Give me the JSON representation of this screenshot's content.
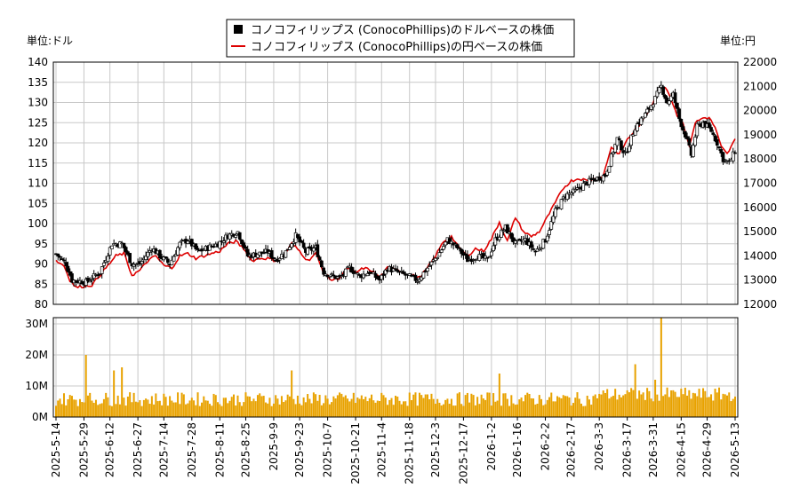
{
  "chart_data": {
    "type": "candlestick+line+volume-bar",
    "legend": {
      "placement": "top-center",
      "entries": [
        "コノコフィリップス (ConocoPhillips)のドルベースの株価",
        "コノコフィリップス (ConocoPhillips)の円ベースの株価"
      ]
    },
    "left_axis_unit": "単位:ドル",
    "right_axis_unit": "単位:円",
    "price_axis": {
      "ylim": [
        80,
        140
      ],
      "ticks": [
        "80",
        "85",
        "90",
        "95",
        "100",
        "105",
        "110",
        "115",
        "120",
        "125",
        "130",
        "135",
        "140"
      ]
    },
    "yen_axis": {
      "ylim": [
        12000,
        22000
      ],
      "ticks": [
        "12000",
        "13000",
        "14000",
        "15000",
        "16000",
        "17000",
        "18000",
        "19000",
        "20000",
        "21000",
        "22000"
      ]
    },
    "volume_axis": {
      "ylim": [
        0,
        32000000
      ],
      "ticks": [
        "0M",
        "10M",
        "20M",
        "30M"
      ]
    },
    "x_tick_labels": [
      "2025-5-14",
      "2025-5-29",
      "2025-6-12",
      "2025-6-27",
      "2025-7-14",
      "2025-7-28",
      "2025-8-11",
      "2025-8-25",
      "2025-9-9",
      "2025-9-23",
      "2025-10-7",
      "2025-10-21",
      "2025-11-4",
      "2025-11-18",
      "2025-12-3",
      "2025-12-17",
      "2026-1-2",
      "2026-1-16",
      "2026-2-2",
      "2026-2-17",
      "2026-3-3",
      "2026-3-17",
      "2026-3-31",
      "2026-4-15",
      "2026-4-29",
      "2026-5-13"
    ],
    "usd_close_anchors": [
      [
        0,
        92.5
      ],
      [
        5,
        90
      ],
      [
        8,
        86
      ],
      [
        15,
        85.5
      ],
      [
        22,
        88
      ],
      [
        28,
        95
      ],
      [
        33,
        95
      ],
      [
        38,
        90
      ],
      [
        42,
        90
      ],
      [
        48,
        94
      ],
      [
        52,
        92
      ],
      [
        57,
        90
      ],
      [
        62,
        95
      ],
      [
        66,
        96
      ],
      [
        71,
        93
      ],
      [
        76,
        94
      ],
      [
        81,
        95
      ],
      [
        86,
        97
      ],
      [
        91,
        98
      ],
      [
        96,
        92
      ],
      [
        101,
        92.5
      ],
      [
        106,
        93
      ],
      [
        110,
        91
      ],
      [
        115,
        93
      ],
      [
        120,
        97
      ],
      [
        125,
        93
      ],
      [
        130,
        94
      ],
      [
        134,
        88
      ],
      [
        138,
        87
      ],
      [
        142,
        86.5
      ],
      [
        147,
        89
      ],
      [
        152,
        87
      ],
      [
        157,
        88
      ],
      [
        162,
        86
      ],
      [
        166,
        89
      ],
      [
        171,
        88
      ],
      [
        176,
        87
      ],
      [
        181,
        86
      ],
      [
        186,
        89
      ],
      [
        191,
        92
      ],
      [
        196,
        96
      ],
      [
        201,
        94
      ],
      [
        206,
        91
      ],
      [
        211,
        92
      ],
      [
        216,
        91
      ],
      [
        220,
        96
      ],
      [
        225,
        99
      ],
      [
        230,
        95
      ],
      [
        235,
        96
      ],
      [
        240,
        93
      ],
      [
        245,
        96
      ],
      [
        250,
        103
      ],
      [
        255,
        107
      ],
      [
        260,
        108
      ],
      [
        265,
        110
      ],
      [
        270,
        111
      ],
      [
        275,
        112
      ],
      [
        281,
        121
      ],
      [
        285,
        117
      ],
      [
        290,
        124
      ],
      [
        295,
        127
      ],
      [
        300,
        131
      ],
      [
        303,
        134
      ],
      [
        306,
        130
      ],
      [
        309,
        132
      ],
      [
        312,
        126
      ],
      [
        315,
        122
      ],
      [
        318,
        117
      ],
      [
        321,
        124
      ],
      [
        324,
        125
      ],
      [
        328,
        123
      ],
      [
        331,
        120
      ],
      [
        334,
        116
      ],
      [
        337,
        115
      ],
      [
        340,
        118
      ]
    ],
    "jpy_line_anchors": [
      [
        0,
        13800
      ],
      [
        4,
        13600
      ],
      [
        7,
        13000
      ],
      [
        10,
        12700
      ],
      [
        14,
        12750
      ],
      [
        18,
        12800
      ],
      [
        22,
        13200
      ],
      [
        26,
        13600
      ],
      [
        30,
        14000
      ],
      [
        34,
        14100
      ],
      [
        38,
        13200
      ],
      [
        42,
        13400
      ],
      [
        46,
        13800
      ],
      [
        50,
        14000
      ],
      [
        54,
        13600
      ],
      [
        58,
        13500
      ],
      [
        62,
        14000
      ],
      [
        66,
        14100
      ],
      [
        70,
        13900
      ],
      [
        74,
        14000
      ],
      [
        78,
        14100
      ],
      [
        82,
        14200
      ],
      [
        86,
        14500
      ],
      [
        90,
        14600
      ],
      [
        94,
        14300
      ],
      [
        98,
        13800
      ],
      [
        102,
        13900
      ],
      [
        106,
        13900
      ],
      [
        110,
        13800
      ],
      [
        114,
        14000
      ],
      [
        118,
        14500
      ],
      [
        122,
        14200
      ],
      [
        126,
        13800
      ],
      [
        130,
        14100
      ],
      [
        134,
        13300
      ],
      [
        138,
        13000
      ],
      [
        142,
        13100
      ],
      [
        146,
        13500
      ],
      [
        150,
        13300
      ],
      [
        154,
        13500
      ],
      [
        158,
        13400
      ],
      [
        162,
        13100
      ],
      [
        166,
        13500
      ],
      [
        170,
        13500
      ],
      [
        174,
        13300
      ],
      [
        178,
        13200
      ],
      [
        182,
        13100
      ],
      [
        186,
        13500
      ],
      [
        190,
        14000
      ],
      [
        194,
        14600
      ],
      [
        198,
        14800
      ],
      [
        202,
        14300
      ],
      [
        206,
        14000
      ],
      [
        210,
        14300
      ],
      [
        214,
        14200
      ],
      [
        218,
        14700
      ],
      [
        222,
        15400
      ],
      [
        226,
        14600
      ],
      [
        230,
        15600
      ],
      [
        234,
        15000
      ],
      [
        238,
        14800
      ],
      [
        242,
        15000
      ],
      [
        246,
        15600
      ],
      [
        250,
        16200
      ],
      [
        254,
        16800
      ],
      [
        258,
        17100
      ],
      [
        262,
        17200
      ],
      [
        266,
        17100
      ],
      [
        270,
        17200
      ],
      [
        274,
        17300
      ],
      [
        278,
        18500
      ],
      [
        282,
        18200
      ],
      [
        286,
        18800
      ],
      [
        290,
        19200
      ],
      [
        294,
        19600
      ],
      [
        298,
        20200
      ],
      [
        302,
        20900
      ],
      [
        305,
        21000
      ],
      [
        308,
        20500
      ],
      [
        311,
        19800
      ],
      [
        314,
        19500
      ],
      [
        317,
        18500
      ],
      [
        320,
        19500
      ],
      [
        324,
        19700
      ],
      [
        327,
        19700
      ],
      [
        330,
        19300
      ],
      [
        333,
        18500
      ],
      [
        336,
        18200
      ],
      [
        340,
        18800
      ]
    ]
  },
  "colors": {
    "candle_up": "#ffffff",
    "candle_down": "#000000",
    "yen_line": "#dd0000",
    "volume_bar": "#e8a200",
    "grid": "#c8c8c8",
    "axis": "#000000"
  }
}
